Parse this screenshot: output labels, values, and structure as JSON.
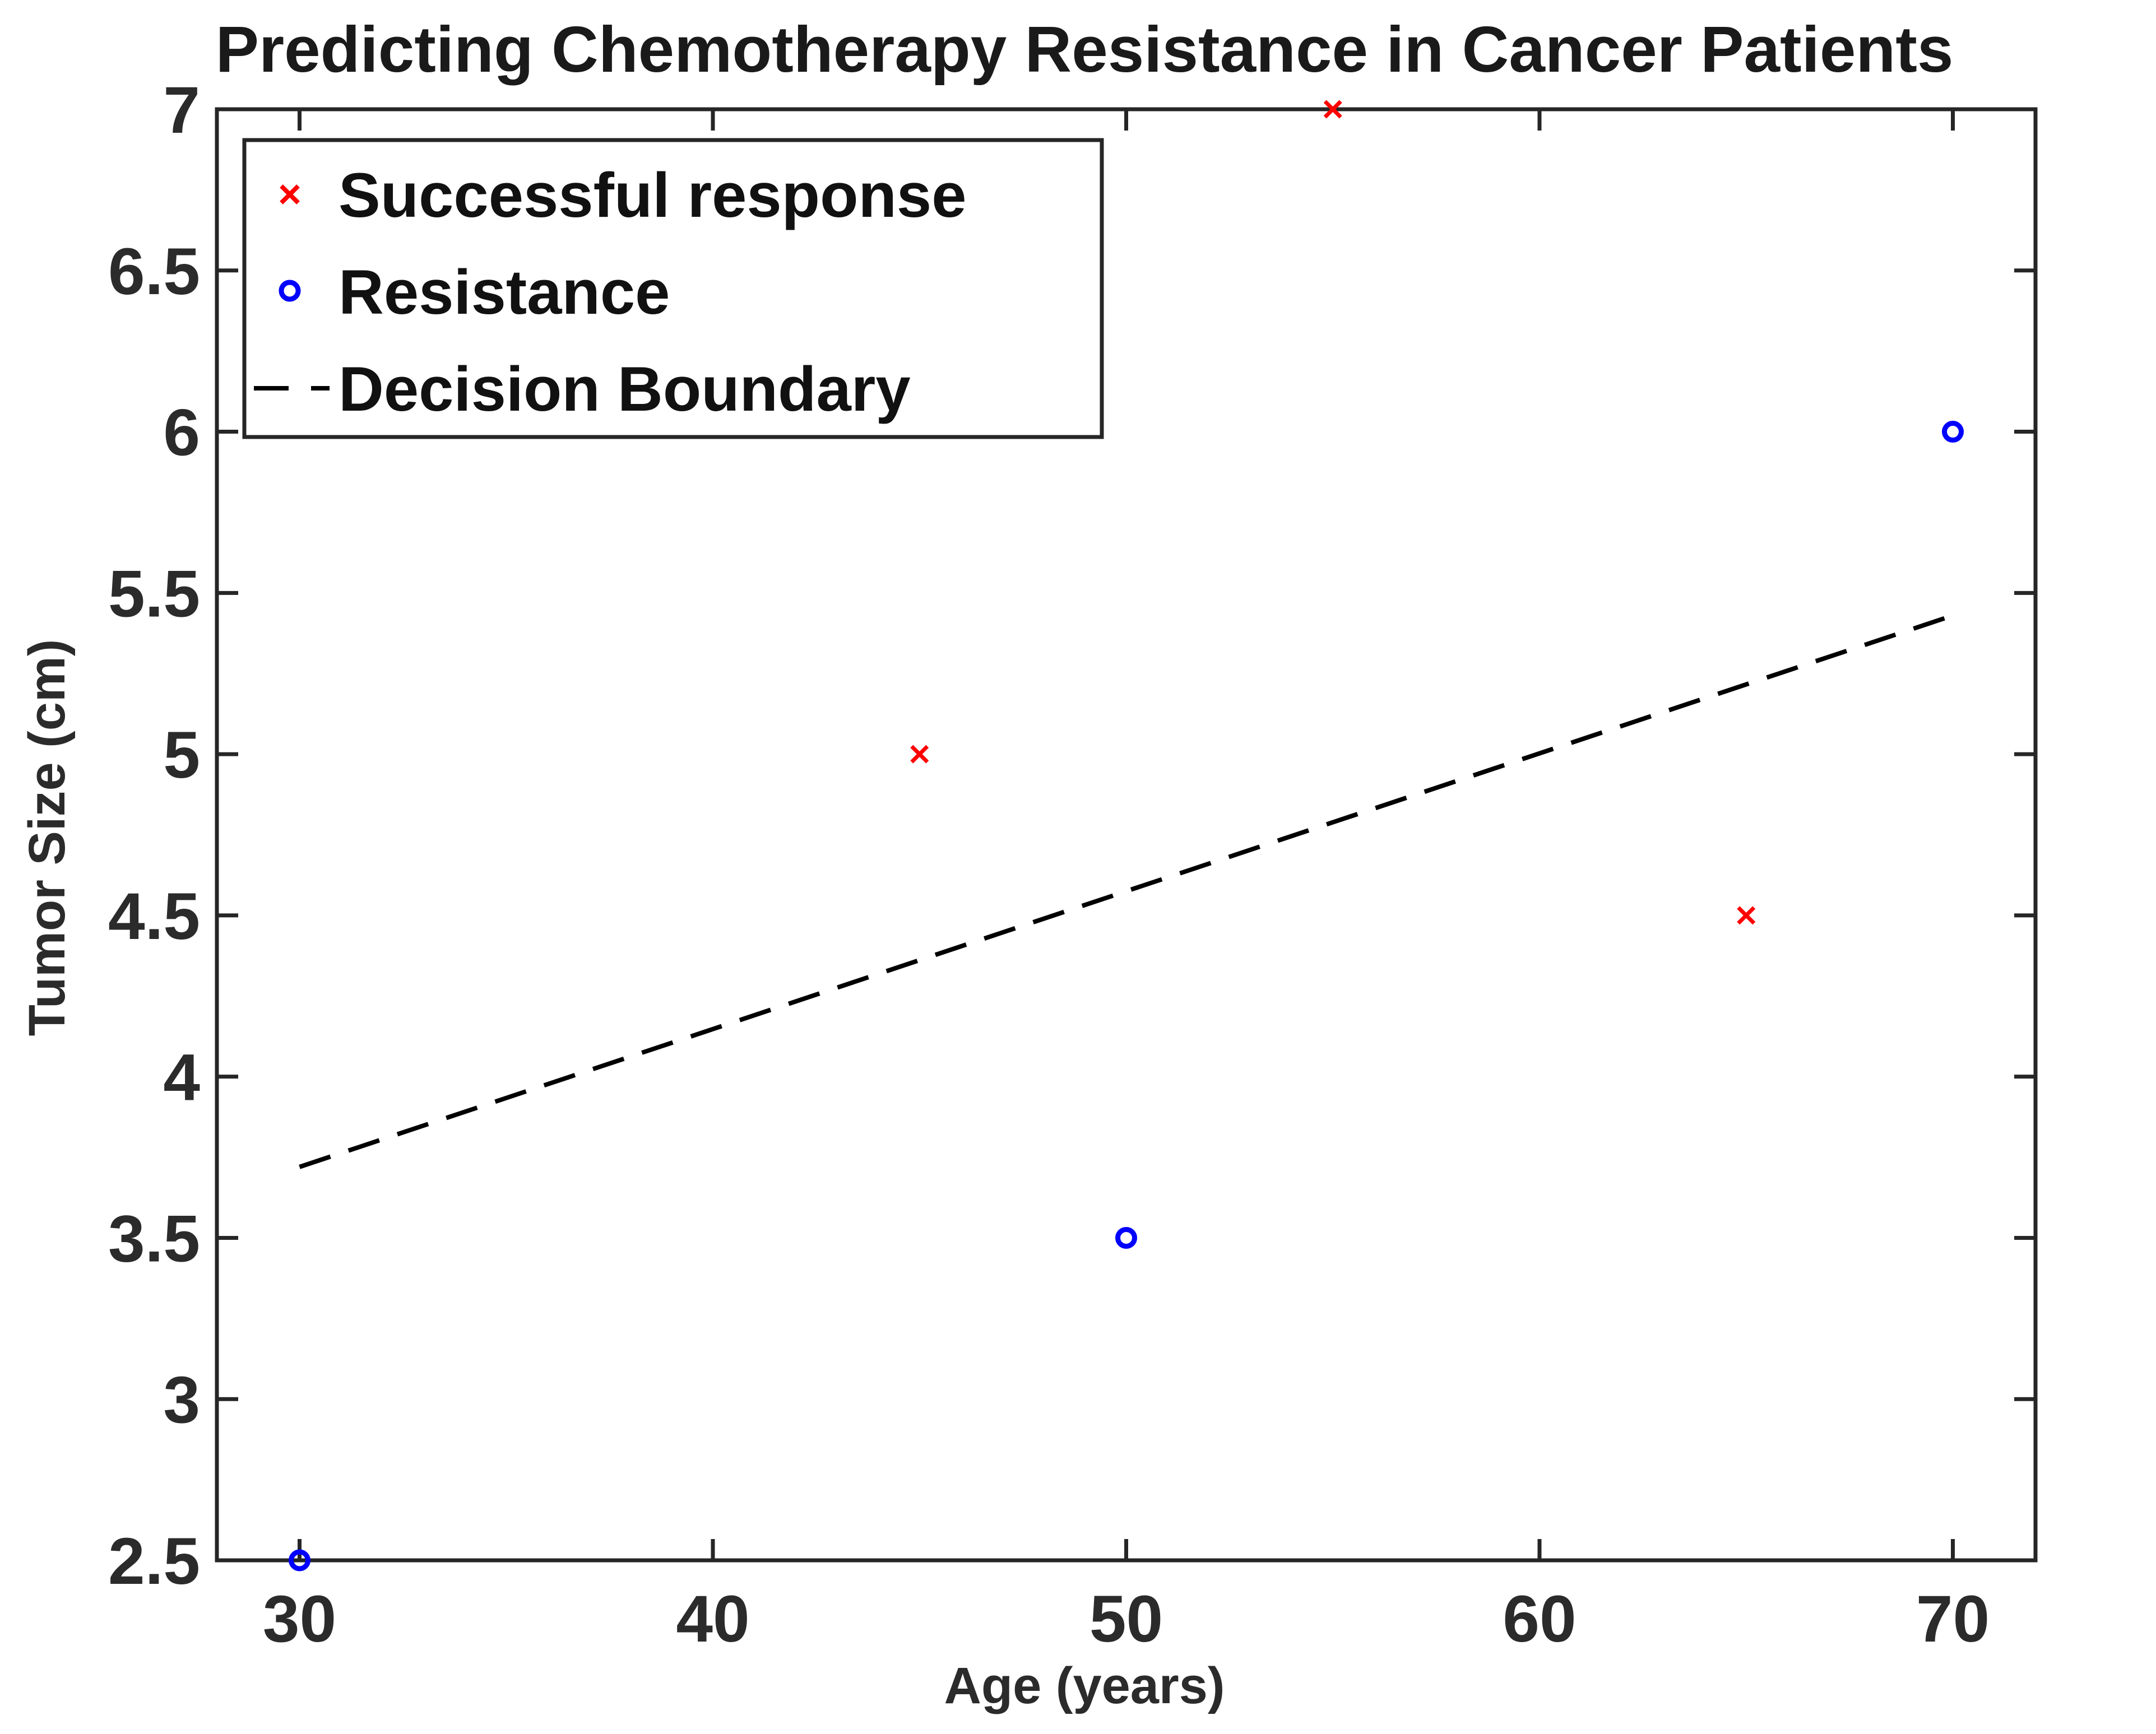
{
  "chart_data": {
    "type": "scatter",
    "title": "Predicting Chemotherapy Resistance in Cancer Patients",
    "xlabel": "Age (years)",
    "ylabel": "Tumor Size (cm)",
    "xlim": [
      28,
      72
    ],
    "ylim": [
      2.5,
      7
    ],
    "xticks": [
      30,
      40,
      50,
      60,
      70
    ],
    "xtick_labels": [
      "30",
      "40",
      "50",
      "60",
      "70"
    ],
    "yticks": [
      2.5,
      3,
      3.5,
      4,
      4.5,
      5,
      5.5,
      6,
      6.5,
      7
    ],
    "ytick_labels": [
      "2.5",
      "3",
      "3.5",
      "4",
      "4.5",
      "5",
      "5.5",
      "6",
      "6.5",
      "7"
    ],
    "grid": false,
    "legend_position": "top-left",
    "series": [
      {
        "name": "Successful response",
        "marker": "x",
        "color": "#ff0000",
        "x": [
          45,
          55,
          65
        ],
        "y": [
          5,
          7,
          4.5
        ]
      },
      {
        "name": "Resistance",
        "marker": "circle",
        "color": "#0000ff",
        "x": [
          30,
          50,
          70
        ],
        "y": [
          2.5,
          3.5,
          6
        ]
      },
      {
        "name": "Decision Boundary",
        "marker": "dashed-line",
        "color": "#000000",
        "x": [
          30,
          70
        ],
        "y": [
          3.72,
          5.43
        ]
      }
    ]
  }
}
